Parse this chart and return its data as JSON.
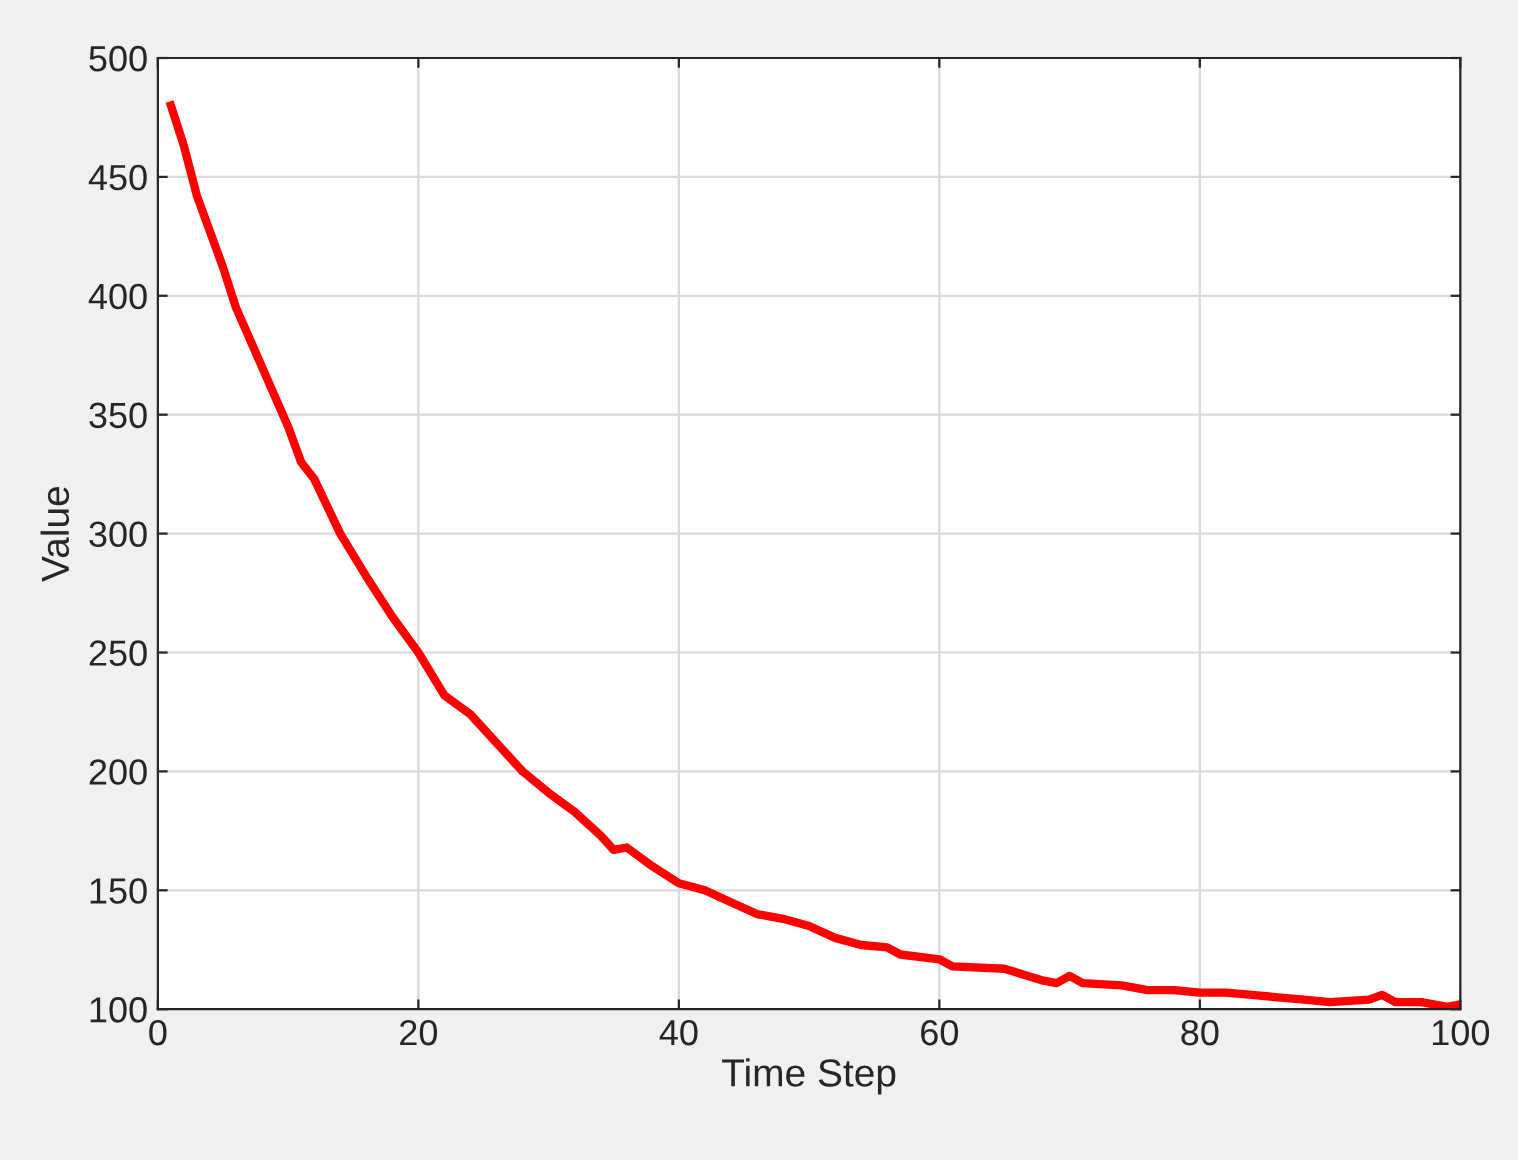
{
  "chart_data": {
    "type": "line",
    "xlabel": "Time Step",
    "ylabel": "Value",
    "x": [
      1,
      2,
      3,
      5,
      6,
      8,
      10,
      11,
      12,
      14,
      16,
      18,
      20,
      22,
      24,
      26,
      28,
      30,
      32,
      34,
      35,
      36,
      38,
      40,
      42,
      44,
      46,
      48,
      50,
      52,
      54,
      56,
      57,
      60,
      61,
      65,
      68,
      69,
      70,
      71,
      74,
      76,
      78,
      80,
      82,
      84,
      86,
      88,
      90,
      93,
      94,
      95,
      97,
      99,
      100
    ],
    "series": [
      {
        "color": "#ff0000",
        "values": [
          480,
          463,
          442,
          412,
          395,
          370,
          345,
          330,
          323,
          300,
          282,
          265,
          250,
          232,
          224,
          212,
          200,
          191,
          183,
          173,
          167,
          168,
          160,
          153,
          150,
          145,
          140,
          138,
          135,
          130,
          127,
          126,
          123,
          121,
          118,
          117,
          112,
          111,
          114,
          111,
          110,
          108,
          108,
          107,
          107,
          106,
          105,
          104,
          103,
          104,
          106,
          103,
          103,
          101,
          102
        ]
      }
    ],
    "xlim": [
      0,
      100
    ],
    "ylim": [
      100,
      500
    ],
    "xticks": [
      0,
      20,
      40,
      60,
      80,
      100
    ],
    "yticks": [
      100,
      150,
      200,
      250,
      300,
      350,
      400,
      450,
      500
    ],
    "grid": true,
    "marker": "none",
    "line_style": "solid"
  }
}
